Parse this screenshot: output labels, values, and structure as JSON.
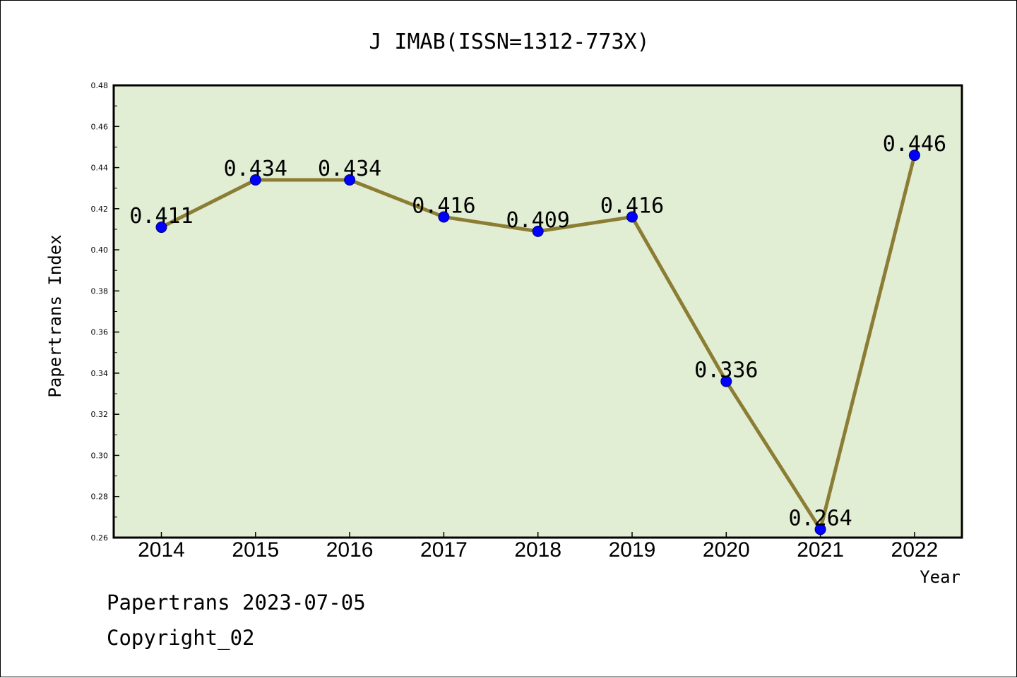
{
  "colors": {
    "plot_bg": "#e1eed4",
    "line": "#8b7d33",
    "marker": "#0000ff",
    "axis": "#000000",
    "text": "#000000"
  },
  "footer": {
    "line1": "Papertrans 2023-07-05",
    "line2": "Copyright_02"
  },
  "chart_data": {
    "type": "line",
    "title": "J IMAB(ISSN=1312-773X)",
    "xlabel": "Year",
    "ylabel": "Papertrans Index",
    "categories": [
      "2014",
      "2015",
      "2016",
      "2017",
      "2018",
      "2019",
      "2020",
      "2021",
      "2022"
    ],
    "values": [
      0.411,
      0.434,
      0.434,
      0.416,
      0.409,
      0.416,
      0.336,
      0.264,
      0.446
    ],
    "data_labels": [
      "0.411",
      "0.434",
      "0.434",
      "0.416",
      "0.409",
      "0.416",
      "0.336",
      "0.264",
      "0.446"
    ],
    "ylim": [
      0.26,
      0.48
    ],
    "yticks": [
      "0.26",
      "0.28",
      "0.30",
      "0.32",
      "0.34",
      "0.36",
      "0.38",
      "0.40",
      "0.42",
      "0.44",
      "0.46",
      "0.48"
    ],
    "grid": false,
    "legend": "none"
  }
}
